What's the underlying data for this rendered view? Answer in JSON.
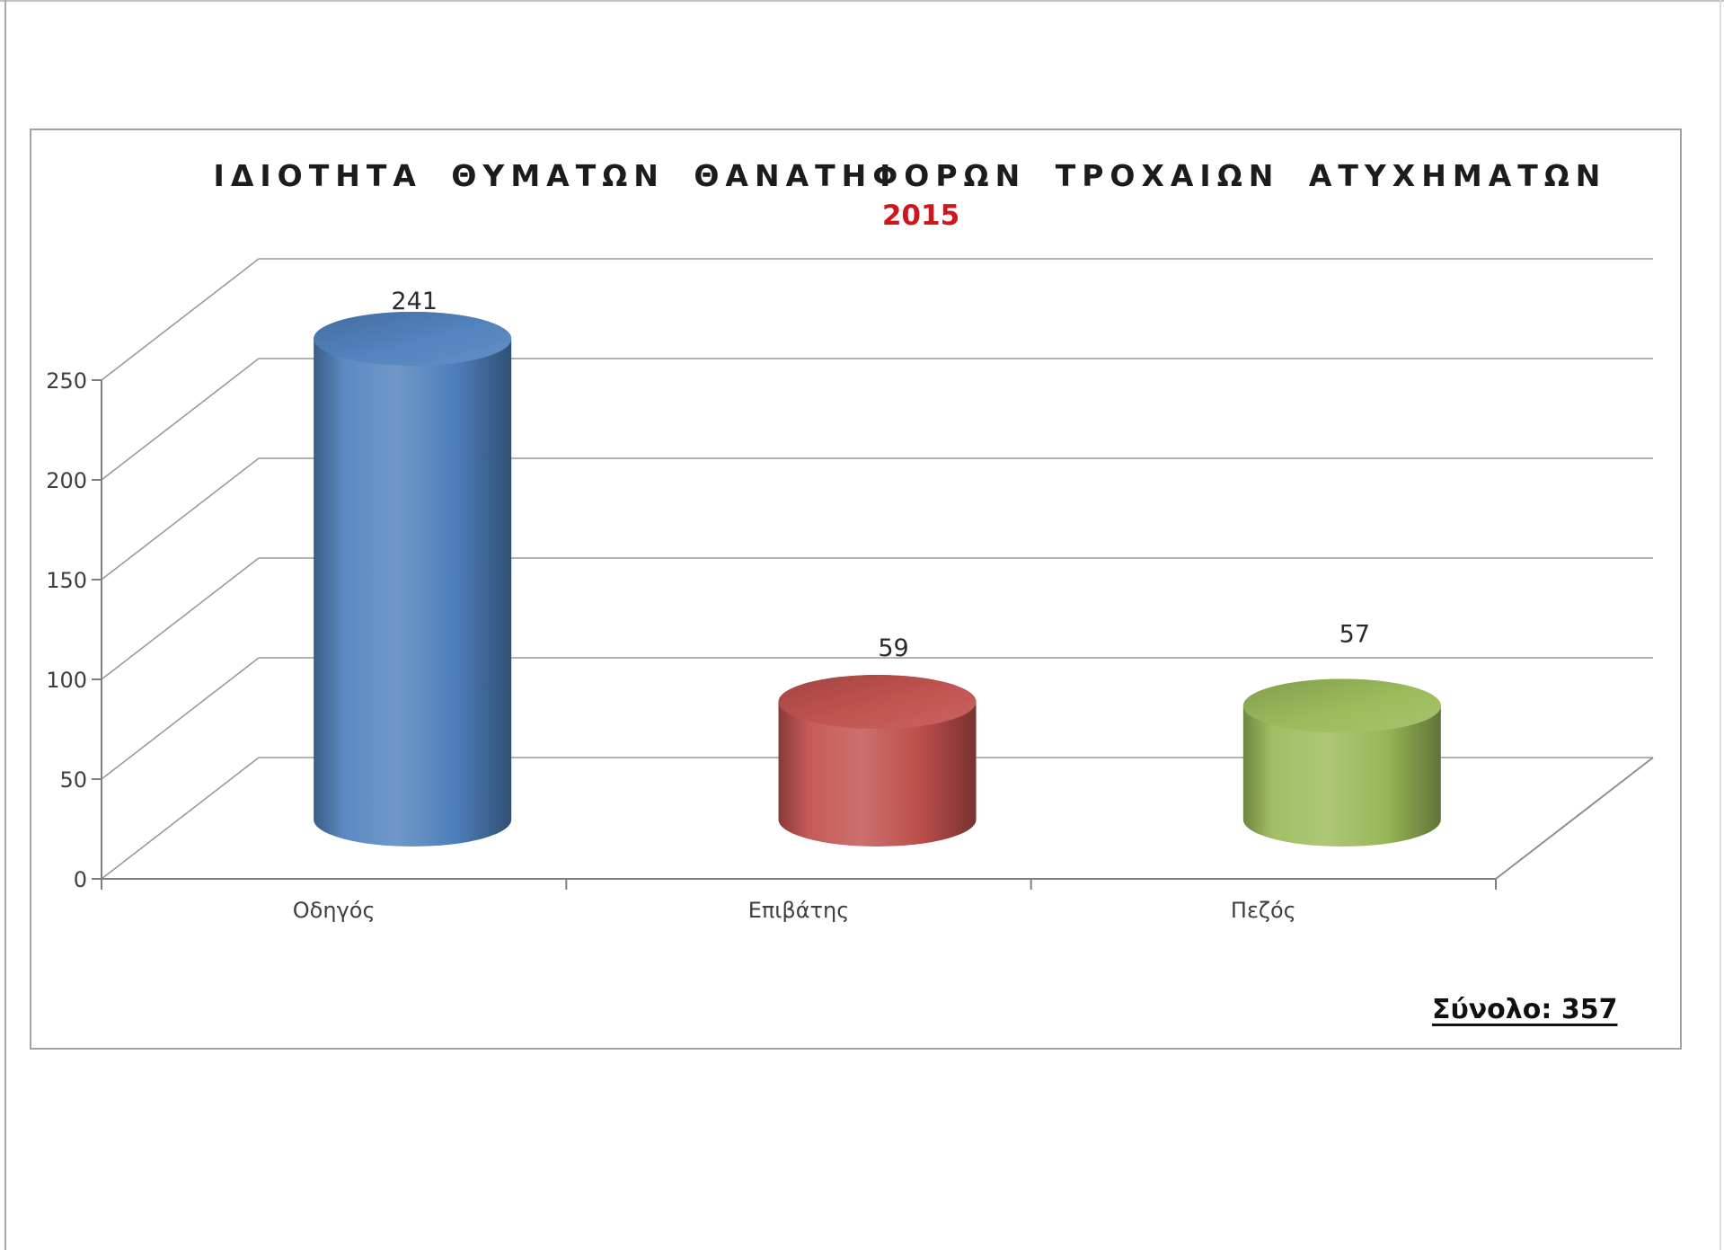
{
  "chart": {
    "title": "ΙΔΙΟΤΗΤΑ ΘΥΜΑΤΩΝ ΘΑΝΑΤΗΦΟΡΩΝ ΤΡΟΧΑΙΩΝ ΑΤΥΧΗΜΑΤΩΝ",
    "subtitle": "2015",
    "subtitle_color": "#ce171c",
    "total_label": "Σύνολο: 357",
    "axis_text_color": "#3f3f3f",
    "data_label_color": "#2b2b2b",
    "grid_color": "#9a9a9a",
    "axis_color": "#7f7f7f",
    "frame_border_color": "#a3a3a3"
  },
  "chart_data": {
    "type": "bar",
    "render_style": "3d-cylinder",
    "title": "ΙΔΙΟΤΗΤΑ ΘΥΜΑΤΩΝ ΘΑΝΑΤΗΦΟΡΩΝ ΤΡΟΧΑΙΩΝ ΑΤΥΧΗΜΑΤΩΝ",
    "subtitle": "2015",
    "categories": [
      "Οδηγός",
      "Επιβάτης",
      "Πεζός"
    ],
    "values": [
      241,
      59,
      57
    ],
    "data_labels": [
      "241",
      "59",
      "57"
    ],
    "series_colors": [
      "#4f81bd",
      "#c0504d",
      "#9bbb59"
    ],
    "xlabel": "",
    "ylabel": "",
    "ylim": [
      0,
      250
    ],
    "yticks": [
      0,
      50,
      100,
      150,
      200,
      250
    ],
    "grid": true,
    "legend": false,
    "total": 357
  }
}
